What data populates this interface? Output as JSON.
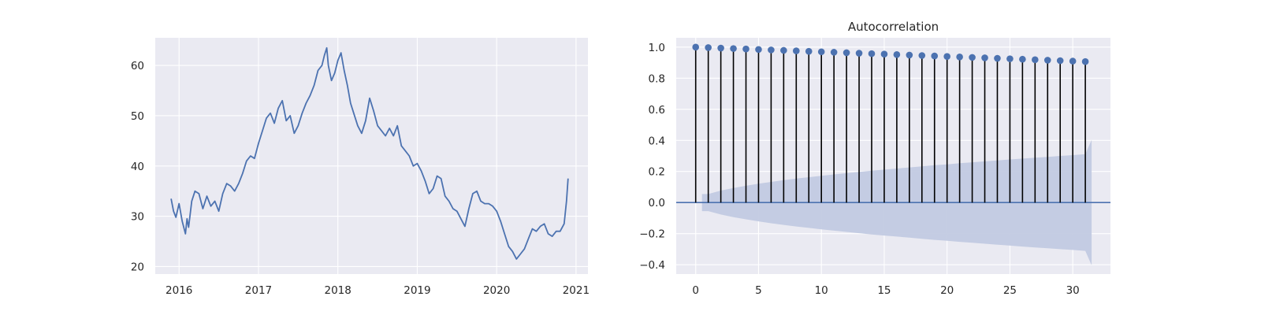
{
  "chart_data": [
    {
      "type": "line",
      "title": "",
      "xlabel": "",
      "ylabel": "",
      "xlim": [
        2015.7,
        2021.15
      ],
      "ylim": [
        18.5,
        65.5
      ],
      "grid": true,
      "xticks": [
        {
          "value": 2016,
          "label": "2016"
        },
        {
          "value": 2017,
          "label": "2017"
        },
        {
          "value": 2018,
          "label": "2018"
        },
        {
          "value": 2019,
          "label": "2019"
        },
        {
          "value": 2020,
          "label": "2020"
        },
        {
          "value": 2021,
          "label": "2021"
        }
      ],
      "yticks": [
        {
          "value": 20,
          "label": "20"
        },
        {
          "value": 30,
          "label": "30"
        },
        {
          "value": 40,
          "label": "40"
        },
        {
          "value": 50,
          "label": "50"
        },
        {
          "value": 60,
          "label": "60"
        }
      ],
      "line_color": "#4c72b0",
      "series": [
        {
          "x": [
            2015.9,
            2015.93,
            2015.96,
            2016.0,
            2016.04,
            2016.08,
            2016.1,
            2016.12,
            2016.16,
            2016.2,
            2016.25,
            2016.3,
            2016.35,
            2016.4,
            2016.45,
            2016.5,
            2016.55,
            2016.6,
            2016.65,
            2016.7,
            2016.75,
            2016.8,
            2016.85,
            2016.9,
            2016.95,
            2017.0,
            2017.05,
            2017.1,
            2017.15,
            2017.2,
            2017.25,
            2017.3,
            2017.35,
            2017.4,
            2017.45,
            2017.5,
            2017.55,
            2017.6,
            2017.65,
            2017.7,
            2017.75,
            2017.8,
            2017.83,
            2017.86,
            2017.88,
            2017.92,
            2017.96,
            2018.0,
            2018.04,
            2018.08,
            2018.12,
            2018.16,
            2018.2,
            2018.25,
            2018.3,
            2018.35,
            2018.4,
            2018.45,
            2018.5,
            2018.55,
            2018.6,
            2018.65,
            2018.7,
            2018.75,
            2018.8,
            2018.85,
            2018.9,
            2018.95,
            2019.0,
            2019.05,
            2019.1,
            2019.15,
            2019.2,
            2019.25,
            2019.3,
            2019.35,
            2019.4,
            2019.45,
            2019.5,
            2019.55,
            2019.6,
            2019.65,
            2019.7,
            2019.75,
            2019.8,
            2019.85,
            2019.9,
            2019.95,
            2020.0,
            2020.05,
            2020.1,
            2020.15,
            2020.2,
            2020.25,
            2020.3,
            2020.35,
            2020.4,
            2020.45,
            2020.5,
            2020.55,
            2020.6,
            2020.65,
            2020.7,
            2020.75,
            2020.8,
            2020.85,
            2020.88,
            2020.9
          ],
          "y": [
            33.5,
            31.0,
            29.8,
            32.5,
            29.0,
            26.5,
            29.5,
            27.8,
            33.0,
            35.0,
            34.5,
            31.5,
            34.0,
            32.0,
            33.0,
            31.0,
            34.5,
            36.5,
            36.0,
            35.0,
            36.5,
            38.5,
            41.0,
            42.0,
            41.5,
            44.5,
            47.0,
            49.5,
            50.5,
            48.5,
            51.5,
            53.0,
            49.0,
            50.0,
            46.5,
            48.0,
            50.5,
            52.5,
            54.0,
            56.0,
            59.0,
            60.0,
            62.0,
            63.5,
            60.0,
            57.0,
            58.5,
            61.0,
            62.5,
            59.0,
            56.0,
            52.5,
            50.5,
            48.0,
            46.5,
            49.0,
            53.5,
            51.0,
            48.0,
            47.0,
            46.0,
            47.5,
            46.0,
            48.0,
            44.0,
            43.0,
            42.0,
            40.0,
            40.5,
            39.0,
            37.0,
            34.5,
            35.5,
            38.0,
            37.5,
            34.0,
            33.0,
            31.5,
            31.0,
            29.5,
            28.0,
            31.5,
            34.5,
            35.0,
            33.0,
            32.5,
            32.5,
            32.0,
            31.0,
            29.0,
            26.5,
            24.0,
            23.0,
            21.5,
            22.5,
            23.5,
            25.5,
            27.5,
            27.0,
            28.0,
            28.5,
            26.5,
            26.0,
            27.0,
            27.0,
            28.5,
            33.0,
            37.5
          ]
        }
      ]
    },
    {
      "type": "stem",
      "title": "Autocorrelation",
      "xlabel": "",
      "ylabel": "",
      "xlim": [
        -1.55,
        33.0
      ],
      "ylim": [
        -0.46,
        1.06
      ],
      "grid": true,
      "xticks": [
        {
          "value": 0,
          "label": "0"
        },
        {
          "value": 5,
          "label": "5"
        },
        {
          "value": 10,
          "label": "10"
        },
        {
          "value": 15,
          "label": "15"
        },
        {
          "value": 20,
          "label": "20"
        },
        {
          "value": 25,
          "label": "25"
        },
        {
          "value": 30,
          "label": "30"
        }
      ],
      "yticks": [
        {
          "value": -0.4,
          "label": "−0.4"
        },
        {
          "value": -0.2,
          "label": "−0.2"
        },
        {
          "value": 0.0,
          "label": "0.0"
        },
        {
          "value": 0.2,
          "label": "0.2"
        },
        {
          "value": 0.4,
          "label": "0.4"
        },
        {
          "value": 0.6,
          "label": "0.6"
        },
        {
          "value": 0.8,
          "label": "0.8"
        },
        {
          "value": 1.0,
          "label": "1.0"
        }
      ],
      "marker_color": "#4c72b0",
      "stem_color": "#000000",
      "band_color": "#c2cae2",
      "lags": [
        0,
        1,
        2,
        3,
        4,
        5,
        6,
        7,
        8,
        9,
        10,
        11,
        12,
        13,
        14,
        15,
        16,
        17,
        18,
        19,
        20,
        21,
        22,
        23,
        24,
        25,
        26,
        27,
        28,
        29,
        30,
        31
      ],
      "values": [
        1.0,
        0.997,
        0.994,
        0.991,
        0.988,
        0.985,
        0.982,
        0.979,
        0.976,
        0.973,
        0.97,
        0.967,
        0.964,
        0.961,
        0.958,
        0.955,
        0.952,
        0.949,
        0.946,
        0.943,
        0.94,
        0.937,
        0.934,
        0.931,
        0.928,
        0.925,
        0.922,
        0.919,
        0.916,
        0.913,
        0.91,
        0.907
      ],
      "confidence_band": {
        "x": [
          0.5,
          1,
          2,
          3,
          4,
          5,
          6,
          7,
          8,
          9,
          10,
          11,
          12,
          13,
          14,
          15,
          16,
          17,
          18,
          19,
          20,
          21,
          22,
          23,
          24,
          25,
          26,
          27,
          28,
          29,
          30,
          31,
          31.5
        ],
        "upper": [
          0.055,
          0.055,
          0.077,
          0.094,
          0.108,
          0.121,
          0.133,
          0.144,
          0.154,
          0.163,
          0.172,
          0.181,
          0.189,
          0.197,
          0.205,
          0.212,
          0.219,
          0.226,
          0.233,
          0.24,
          0.246,
          0.253,
          0.259,
          0.265,
          0.271,
          0.277,
          0.283,
          0.289,
          0.294,
          0.3,
          0.305,
          0.311,
          0.404
        ]
      }
    }
  ]
}
